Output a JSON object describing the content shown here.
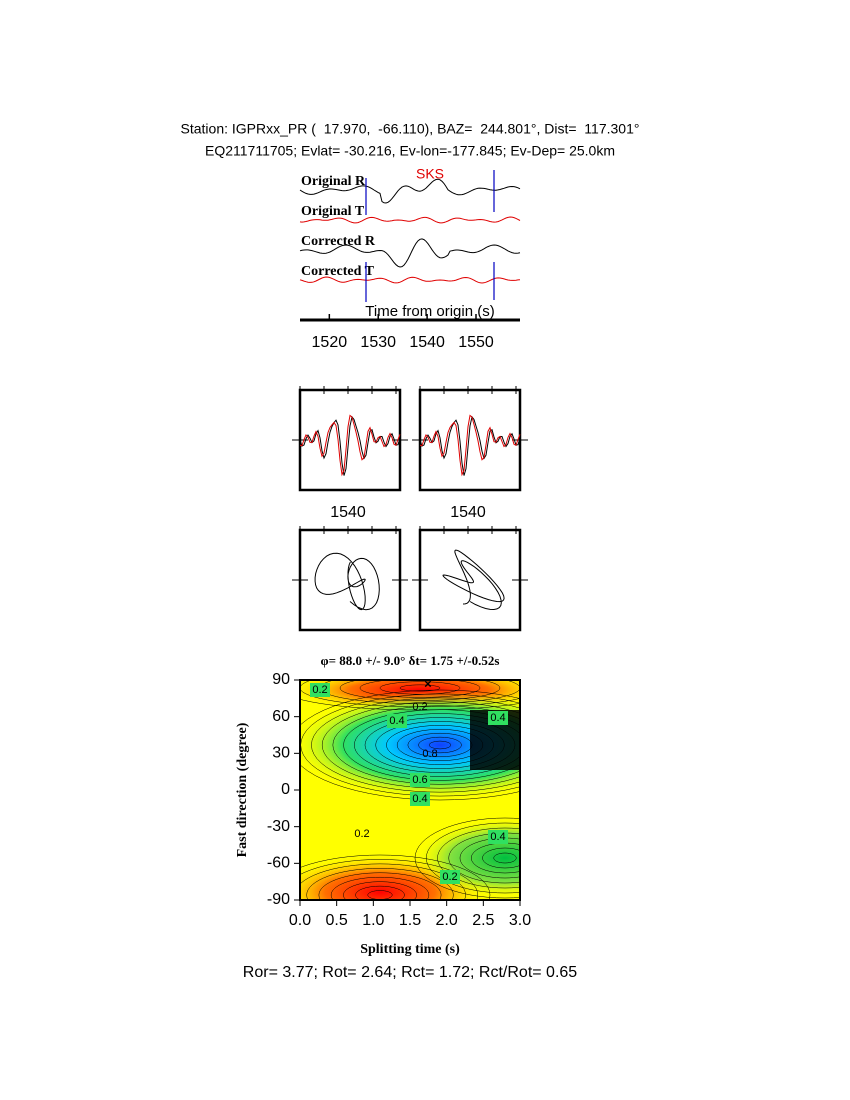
{
  "header": {
    "line1": "Station: IGPRxx_PR (  17.970,  -66.110), BAZ=  244.801°, Dist=  117.301°",
    "line2": "EQ211711705; Evlat= -30.216, Ev-lon=-177.845; Ev-Dep= 25.0km"
  },
  "traces": {
    "labels": [
      "Original R",
      "Original T",
      "Corrected R",
      "Corrected T"
    ],
    "phase": "SKS",
    "xlabel": "Time from origin (s)",
    "xlim": [
      1514,
      1559
    ],
    "xticks": [
      1520,
      1530,
      1540,
      1550
    ]
  },
  "windows": {
    "labels": [
      1540,
      1540
    ]
  },
  "contour": {
    "title": "φ= 88.0 +/- 9.0° δt= 1.75 +/-0.52s",
    "xlabel": "Splitting time (s)",
    "ylabel": "Fast direction (degree)",
    "xlim": [
      0,
      3
    ],
    "ylim": [
      -90,
      90
    ],
    "xticks": [
      {
        "value": 0,
        "label": "0.0"
      },
      0.5,
      {
        "value": 1,
        "label": "1.0"
      },
      1.5,
      {
        "value": 2,
        "label": "2.0"
      },
      2.5,
      {
        "value": 3,
        "label": "3.0"
      }
    ],
    "yticks": [
      -90,
      -60,
      -30,
      0,
      30,
      60,
      90
    ],
    "contour_labels": [
      0.2,
      0.2,
      0.4,
      0.4,
      0.8,
      0.6,
      0.4,
      0.2,
      0.4,
      0.2
    ]
  },
  "footer": "Ror= 3.77; Rot= 2.64; Rct= 1.72; Rct/Rot= 0.65"
}
